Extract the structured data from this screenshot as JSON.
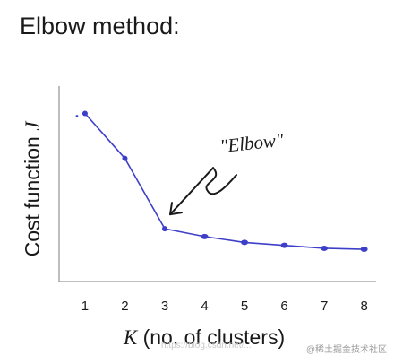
{
  "title": "Elbow method:",
  "watermark": "https://blog.csdn.net/...",
  "watermark_badge": "@稀土掘金技术社区",
  "chart_data": {
    "type": "line",
    "title": "",
    "xlabel": "K (no. of clusters)",
    "xlabel_italic_part": "K",
    "xlabel_rest": " (no. of clusters)",
    "ylabel": "Cost function J",
    "ylabel_text": "Cost function ",
    "ylabel_symbol": "J",
    "x": [
      1,
      2,
      3,
      4,
      5,
      6,
      7,
      8
    ],
    "xticks": [
      "1",
      "2",
      "3",
      "4",
      "5",
      "6",
      "7",
      "8"
    ],
    "series": [
      {
        "values": [
          8.6,
          6.3,
          2.7,
          2.3,
          2.0,
          1.85,
          1.7,
          1.65
        ]
      }
    ],
    "xlim": [
      0.35,
      8.3
    ],
    "ylim": [
      0,
      10
    ],
    "grid": false,
    "annotation": {
      "text": "\"Elbow\"",
      "x": 3,
      "y": 2.7
    },
    "colors": {
      "line": "#3d3fc9",
      "axis": "#9a9a9a",
      "text": "#1a1a1a"
    }
  }
}
